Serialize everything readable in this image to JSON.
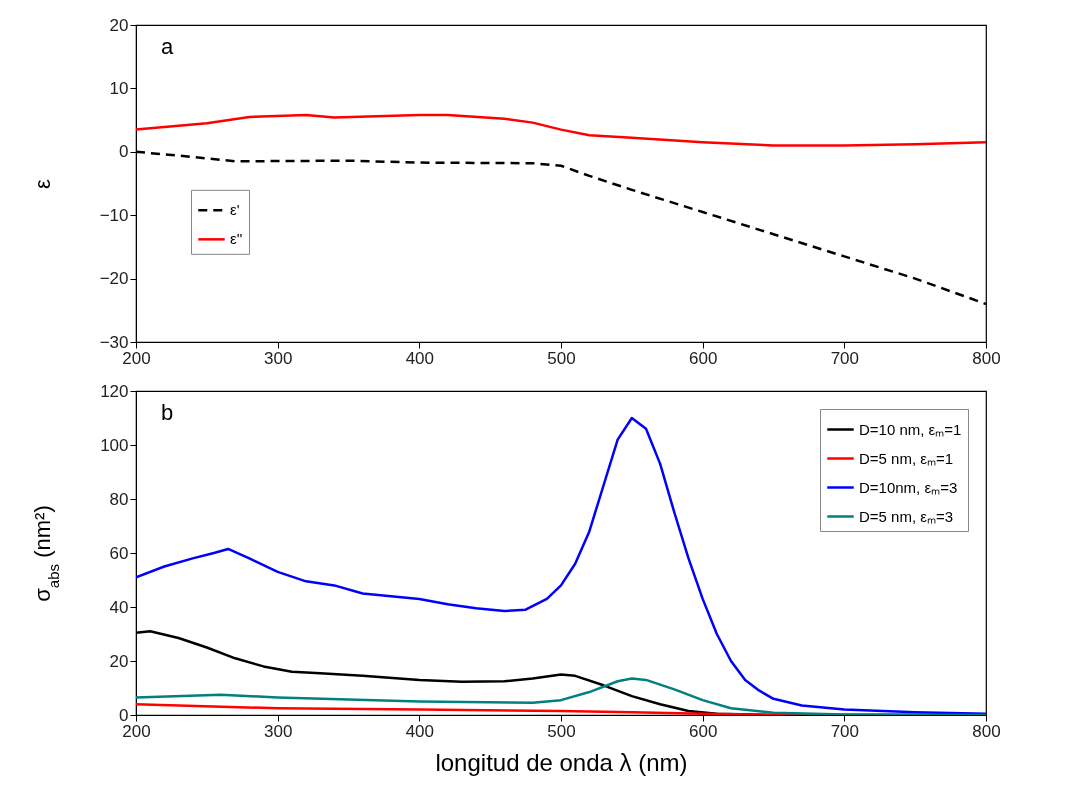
{
  "chart_data": [
    {
      "type": "line",
      "ylabel": "ε",
      "annotations": [
        "a"
      ],
      "xlim": [
        200,
        800
      ],
      "xticks": [
        200,
        300,
        400,
        500,
        600,
        700,
        800
      ],
      "ylim": [
        -30,
        20
      ],
      "yticks": [
        -30,
        -20,
        -10,
        0,
        10,
        20
      ],
      "grid": false,
      "legend": "left",
      "marker": "none",
      "series": [
        {
          "name": "ε'",
          "color": "#000000",
          "line_style": "dashed",
          "x": [
            200,
            230,
            270,
            350,
            400,
            480,
            500,
            520,
            550,
            600,
            650,
            700,
            750,
            800
          ],
          "values": [
            0,
            -0.6,
            -1.5,
            -1.4,
            -1.7,
            -1.8,
            -2.2,
            -3.8,
            -6,
            -9.5,
            -13,
            -16.5,
            -20,
            -24
          ]
        },
        {
          "name": "ε''",
          "color": "#ff0000",
          "line_style": "solid",
          "x": [
            200,
            250,
            280,
            320,
            340,
            400,
            420,
            460,
            480,
            500,
            520,
            550,
            600,
            650,
            700,
            750,
            800
          ],
          "values": [
            3.5,
            4.5,
            5.5,
            5.8,
            5.4,
            5.8,
            5.8,
            5.2,
            4.6,
            3.5,
            2.6,
            2.2,
            1.5,
            1.0,
            1.0,
            1.2,
            1.5
          ]
        }
      ]
    },
    {
      "type": "line",
      "xlabel": "longitud de onda λ (nm)",
      "ylabel": "σ$_{abs}$ (nm²)",
      "annotations": [
        "b"
      ],
      "xlim": [
        200,
        800
      ],
      "xticks": [
        200,
        300,
        400,
        500,
        600,
        700,
        800
      ],
      "ylim": [
        0,
        120
      ],
      "yticks": [
        0,
        20,
        40,
        60,
        80,
        100,
        120
      ],
      "grid": false,
      "legend": "top right",
      "marker": "none",
      "series": [
        {
          "name": "D=10 nm, εₘ=1",
          "color": "#000000",
          "x": [
            200,
            210,
            230,
            250,
            270,
            290,
            310,
            330,
            360,
            400,
            430,
            460,
            480,
            500,
            510,
            530,
            550,
            570,
            590,
            610,
            650,
            800
          ],
          "values": [
            30.5,
            31,
            28.5,
            25,
            21,
            18,
            16,
            15.5,
            14.5,
            13,
            12.3,
            12.5,
            13.5,
            15,
            14.5,
            11,
            7,
            4,
            1.5,
            0.5,
            0,
            0
          ]
        },
        {
          "name": "D=5 nm,   εₘ=1",
          "color": "#ff0000",
          "x": [
            200,
            300,
            400,
            500,
            550,
            600,
            650,
            800
          ],
          "values": [
            4,
            2.5,
            2,
            1.5,
            1,
            0.5,
            0,
            0
          ]
        },
        {
          "name": "D=10nm,  εₘ=3",
          "color": "#0000ff",
          "x": [
            200,
            220,
            240,
            255,
            265,
            280,
            300,
            320,
            340,
            360,
            380,
            400,
            420,
            440,
            460,
            475,
            490,
            500,
            510,
            520,
            530,
            540,
            550,
            560,
            570,
            580,
            590,
            600,
            610,
            620,
            630,
            640,
            650,
            670,
            700,
            750,
            800
          ],
          "values": [
            51,
            55,
            58,
            60,
            61.5,
            58,
            53,
            49.5,
            48,
            45,
            44,
            43,
            41,
            39.5,
            38.5,
            39,
            43,
            48,
            56,
            68,
            85,
            102,
            110,
            106,
            93,
            75,
            58,
            43,
            30,
            20,
            13,
            9,
            6,
            3.5,
            2,
            1,
            0.5
          ]
        },
        {
          "name": "D=5 nm,   εₘ=3",
          "color": "#008080",
          "x": [
            200,
            260,
            300,
            400,
            480,
            500,
            520,
            540,
            550,
            560,
            580,
            600,
            620,
            650,
            700,
            800
          ],
          "values": [
            6.5,
            7.5,
            6.5,
            5,
            4.5,
            5.5,
            8.5,
            12.5,
            13.5,
            13,
            9.5,
            5.5,
            2.5,
            0.8,
            0.2,
            0
          ]
        }
      ]
    }
  ]
}
